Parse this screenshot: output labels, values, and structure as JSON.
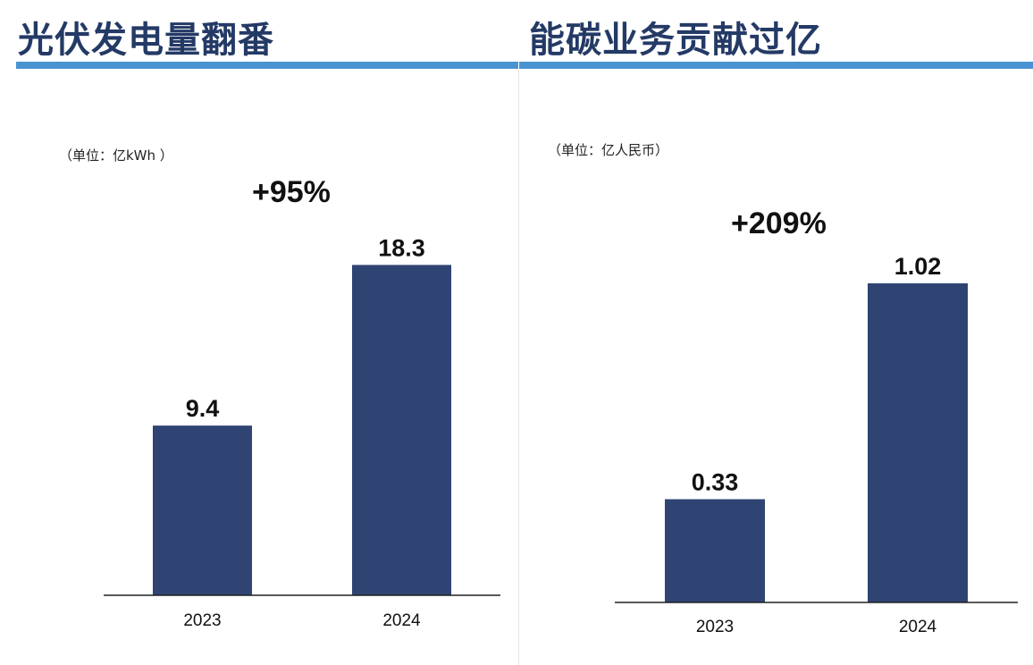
{
  "panels": [
    {
      "title": "光伏发电量翻番",
      "unit": "（单位：亿kWh ）",
      "growth": "+95%"
    },
    {
      "title": "能碳业务贡献过亿",
      "unit": "（单位：亿人民币）",
      "growth": "+209%"
    }
  ],
  "colors": {
    "bar": "#2f4473",
    "title": "#243a66",
    "rule": "#4a93d3",
    "axis": "#222222"
  },
  "chart_data": [
    {
      "type": "bar",
      "title": "光伏发电量翻番",
      "unit": "（单位：亿kWh ）",
      "categories": [
        "2023",
        "2024"
      ],
      "values": [
        9.4,
        18.3
      ],
      "value_labels": [
        "9.4",
        "18.3"
      ],
      "annotation": "+95%",
      "ylim": [
        0,
        20.3
      ],
      "grid": false,
      "legend": "none"
    },
    {
      "type": "bar",
      "title": "能碳业务贡献过亿",
      "unit": "（单位：亿人民币）",
      "categories": [
        "2023",
        "2024"
      ],
      "values": [
        0.33,
        1.02
      ],
      "value_labels": [
        "0.33",
        "1.02"
      ],
      "annotation": "+209%",
      "ylim": [
        0,
        1.2
      ],
      "grid": false,
      "legend": "none"
    }
  ]
}
